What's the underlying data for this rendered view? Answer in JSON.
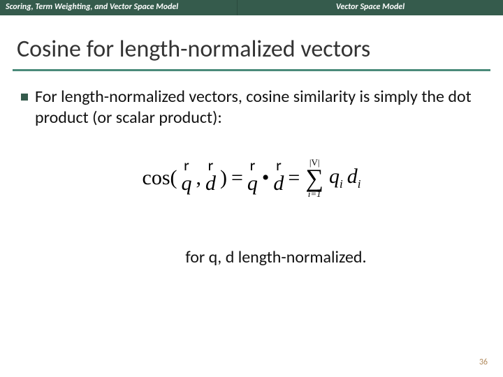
{
  "header": {
    "left": "Scoring, Term Weighting, and Vector Space Model",
    "right": "Vector Space Model"
  },
  "title": "Cosine for length-normalized vectors",
  "body": {
    "bullet1": "For length-normalized vectors, cosine similarity is simply the dot product (or scalar product):",
    "footer": "for q, d length-normalized."
  },
  "formula": {
    "cos": "cos(",
    "q": "q",
    "comma": ",",
    "d": "d",
    "close": ")",
    "eq": "=",
    "dot": "•",
    "sum_top": "|V|",
    "sum_sym": "∑",
    "sum_bot": "i=1",
    "qi_q": "q",
    "qi_i": "i",
    "di_d": "d",
    "di_i": "i",
    "arrow": "r"
  },
  "page": "36",
  "colors": {
    "header_bg": "#355b4c",
    "underline": "#4a8a7a",
    "pagenum": "#b0895c"
  }
}
